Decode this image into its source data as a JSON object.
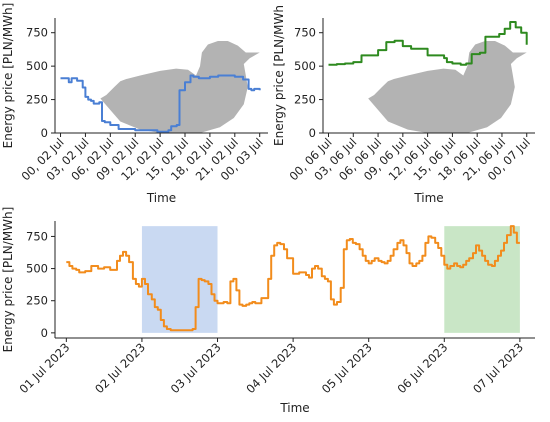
{
  "chart_data": [
    {
      "type": "line",
      "panel": "top-left",
      "xlabel": "Time",
      "ylabel": "Energy price [PLN/MWh]",
      "xlim": [
        -2,
        75
      ],
      "ylim": [
        0,
        860
      ],
      "x_ticks": [
        0,
        9,
        18,
        27,
        36,
        45,
        54,
        63,
        72
      ],
      "x_tick_labels": [
        "00, 02 Jul",
        "03, 02 Jul",
        "06, 02 Jul",
        "09, 02 Jul",
        "12, 02 Jul",
        "15, 02 Jul",
        "18, 02 Jul",
        "21, 02 Jul",
        "00, 03 Jul"
      ],
      "y_ticks": [
        0,
        250,
        500,
        750
      ],
      "y_tick_labels": [
        "0",
        "250",
        "500",
        "750"
      ],
      "background_shape": "duck",
      "background_color": "#b3b3b3",
      "color": "#4a7fd4",
      "series": [
        {
          "step": "post",
          "x": [
            0,
            3,
            4,
            6,
            7,
            8,
            9,
            10,
            11,
            12,
            14,
            15,
            16,
            18,
            21,
            27,
            35,
            39,
            40,
            42,
            43,
            45,
            47,
            48,
            50,
            53,
            54,
            57,
            63,
            66,
            68,
            69,
            70,
            72
          ],
          "y": [
            410,
            380,
            410,
            390,
            390,
            340,
            270,
            250,
            240,
            220,
            230,
            90,
            80,
            60,
            30,
            20,
            10,
            20,
            50,
            60,
            320,
            380,
            430,
            420,
            410,
            410,
            420,
            430,
            420,
            400,
            330,
            320,
            330,
            320
          ]
        }
      ]
    },
    {
      "type": "line",
      "panel": "top-right",
      "xlabel": "Time",
      "ylabel": "Energy price [PLN/MWh",
      "xlim": [
        -2,
        75
      ],
      "ylim": [
        0,
        860
      ],
      "x_ticks": [
        0,
        9,
        18,
        27,
        36,
        45,
        54,
        63,
        72
      ],
      "x_tick_labels": [
        "00, 06 Jul",
        "03, 06 Jul",
        "06, 06 Jul",
        "09, 06 Jul",
        "12, 06 Jul",
        "15, 06 Jul",
        "18, 06 Jul",
        "21, 06 Jul",
        "00, 07 Jul"
      ],
      "y_ticks": [
        0,
        250,
        500,
        750
      ],
      "y_tick_labels": [
        "0",
        "250",
        "500",
        "750"
      ],
      "background_shape": "duck",
      "background_color": "#b3b3b3",
      "color": "#2e8a1f",
      "series": [
        {
          "step": "post",
          "x": [
            0,
            3,
            6,
            9,
            12,
            18,
            21,
            24,
            27,
            30,
            36,
            42,
            43,
            45,
            48,
            50,
            52,
            55,
            57,
            60,
            62,
            64,
            66,
            68,
            70,
            72
          ],
          "y": [
            510,
            515,
            520,
            530,
            580,
            620,
            680,
            690,
            650,
            630,
            580,
            560,
            530,
            520,
            510,
            520,
            590,
            600,
            720,
            720,
            740,
            780,
            830,
            790,
            750,
            660
          ]
        }
      ]
    },
    {
      "type": "line",
      "panel": "bottom",
      "xlabel": "Time",
      "ylabel": "Energy price [PLN/MWh]",
      "xlim": [
        -0.15,
        6.2
      ],
      "ylim": [
        -40,
        870
      ],
      "x_ticks": [
        0,
        1,
        2,
        3,
        4,
        5,
        6
      ],
      "x_tick_labels": [
        "01 Jul 2023",
        "02 Jul 2023",
        "03 Jul 2023",
        "04 Jul 2023",
        "05 Jul 2023",
        "06 Jul 2023",
        "07 Jul 2023"
      ],
      "y_ticks": [
        0,
        250,
        500,
        750
      ],
      "y_tick_labels": [
        "0",
        "250",
        "500",
        "750"
      ],
      "color": "#f28c1c",
      "highlights": [
        {
          "x_range": [
            1,
            2
          ],
          "color": "#c9d9f2"
        },
        {
          "x_range": [
            5,
            6
          ],
          "color": "#c9e6c6"
        }
      ],
      "series": [
        {
          "step": "post",
          "x": [
            0,
            0.04,
            0.08,
            0.13,
            0.17,
            0.25,
            0.33,
            0.42,
            0.5,
            0.58,
            0.67,
            0.71,
            0.75,
            0.79,
            0.83,
            0.88,
            0.92,
            0.96,
            1.0,
            1.04,
            1.08,
            1.13,
            1.17,
            1.21,
            1.25,
            1.29,
            1.33,
            1.38,
            1.42,
            1.46,
            1.5,
            1.54,
            1.58,
            1.63,
            1.67,
            1.71,
            1.75,
            1.79,
            1.83,
            1.88,
            1.92,
            1.96,
            2.0,
            2.04,
            2.08,
            2.13,
            2.17,
            2.21,
            2.25,
            2.29,
            2.33,
            2.38,
            2.42,
            2.46,
            2.5,
            2.58,
            2.67,
            2.71,
            2.75,
            2.79,
            2.83,
            2.88,
            2.92,
            3.0,
            3.08,
            3.17,
            3.21,
            3.25,
            3.29,
            3.33,
            3.38,
            3.42,
            3.46,
            3.5,
            3.54,
            3.58,
            3.63,
            3.67,
            3.71,
            3.75,
            3.79,
            3.83,
            3.88,
            3.92,
            3.96,
            4.0,
            4.04,
            4.08,
            4.13,
            4.17,
            4.21,
            4.25,
            4.29,
            4.33,
            4.38,
            4.42,
            4.46,
            4.5,
            4.54,
            4.58,
            4.63,
            4.67,
            4.71,
            4.75,
            4.79,
            4.83,
            4.88,
            4.92,
            4.96,
            5.0,
            5.04,
            5.08,
            5.13,
            5.17,
            5.21,
            5.25,
            5.29,
            5.33,
            5.38,
            5.42,
            5.46,
            5.5,
            5.54,
            5.58,
            5.63,
            5.67,
            5.71,
            5.75,
            5.79,
            5.83,
            5.88,
            5.92,
            5.96
          ],
          "y": [
            550,
            520,
            500,
            490,
            470,
            480,
            520,
            500,
            510,
            490,
            560,
            600,
            630,
            600,
            550,
            420,
            380,
            360,
            420,
            380,
            300,
            260,
            200,
            180,
            100,
            50,
            30,
            20,
            20,
            20,
            20,
            20,
            20,
            20,
            30,
            200,
            420,
            410,
            400,
            380,
            300,
            250,
            230,
            230,
            240,
            230,
            400,
            420,
            330,
            220,
            210,
            220,
            230,
            240,
            230,
            270,
            420,
            600,
            680,
            700,
            690,
            650,
            580,
            460,
            470,
            450,
            430,
            500,
            520,
            500,
            440,
            420,
            400,
            260,
            220,
            240,
            350,
            650,
            720,
            730,
            700,
            690,
            650,
            600,
            560,
            540,
            560,
            580,
            560,
            550,
            540,
            560,
            600,
            650,
            700,
            720,
            680,
            620,
            540,
            520,
            540,
            560,
            600,
            700,
            750,
            740,
            700,
            660,
            600,
            530,
            500,
            520,
            540,
            520,
            510,
            530,
            560,
            580,
            620,
            680,
            640,
            600,
            560,
            530,
            520,
            560,
            600,
            640,
            700,
            760,
            830,
            780,
            700
          ]
        }
      ]
    }
  ]
}
